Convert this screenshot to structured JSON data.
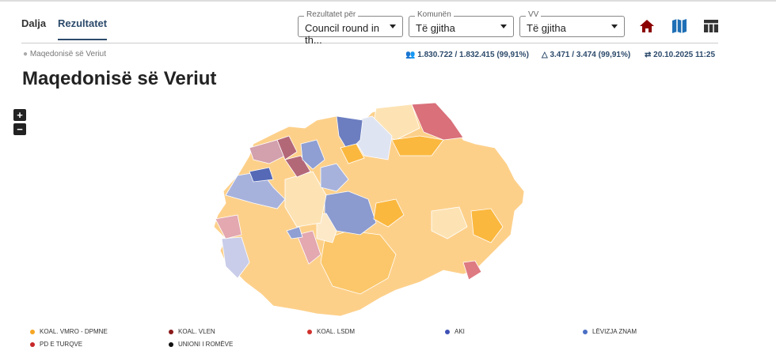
{
  "tabs": [
    "Dalja",
    "Rezultatet"
  ],
  "filters": [
    {
      "label": "Rezultatet për",
      "value": "Council round in th..."
    },
    {
      "label": "Komunën",
      "value": "Të gjitha"
    },
    {
      "label": "VV",
      "value": "Të gjitha"
    }
  ],
  "breadcrumb": "Maqedonisë së Veriut",
  "stats": [
    "1.830.722 / 1.832.415 (99,91%)",
    "3.471 / 3.474 (99,91%)",
    "20.10.2025 11:25"
  ],
  "title": "Maqedonisë së Veriut",
  "zoom": [
    "+",
    "−"
  ],
  "legend": [
    {
      "name": "KOAL. VMRO - DPMNE",
      "color": "#f5a623"
    },
    {
      "name": "KOAL. VLEN",
      "color": "#8b1a1a"
    },
    {
      "name": "KOAL. LSDM",
      "color": "#d0312d"
    },
    {
      "name": "AKI",
      "color": "#3f51b5"
    },
    {
      "name": "LËVIZJA ZNAM",
      "color": "#4a6fc4"
    },
    {
      "name": "PD E TURQVE",
      "color": "#c62828"
    },
    {
      "name": "UNIONI I ROMËVE",
      "color": "#111111"
    }
  ]
}
